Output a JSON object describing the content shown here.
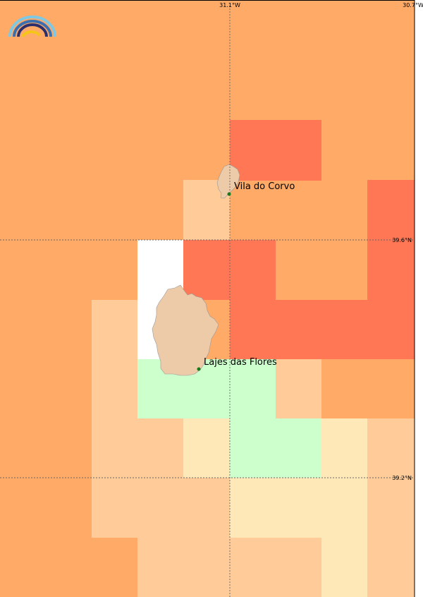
{
  "map": {
    "grid_labels": {
      "lon_1": "31.1°W",
      "lon_2": "30.7°W",
      "lat_1": "39.6°N",
      "lat_2": "39.2°N"
    },
    "places": [
      {
        "name": "Vila do Corvo"
      },
      {
        "name": "Lajes das Flores"
      }
    ],
    "legend_colors": {
      "orange_light": "#FFAA66",
      "orange_red": "#FF7755",
      "peach": "#FFCC99",
      "cream": "#FFE8B8",
      "green": "#CCFFCC",
      "white": "#FFFFFF",
      "land": "#EECBA8",
      "town_marker": "#1a7a1a"
    },
    "logo": "rainbow-logo-icon"
  }
}
